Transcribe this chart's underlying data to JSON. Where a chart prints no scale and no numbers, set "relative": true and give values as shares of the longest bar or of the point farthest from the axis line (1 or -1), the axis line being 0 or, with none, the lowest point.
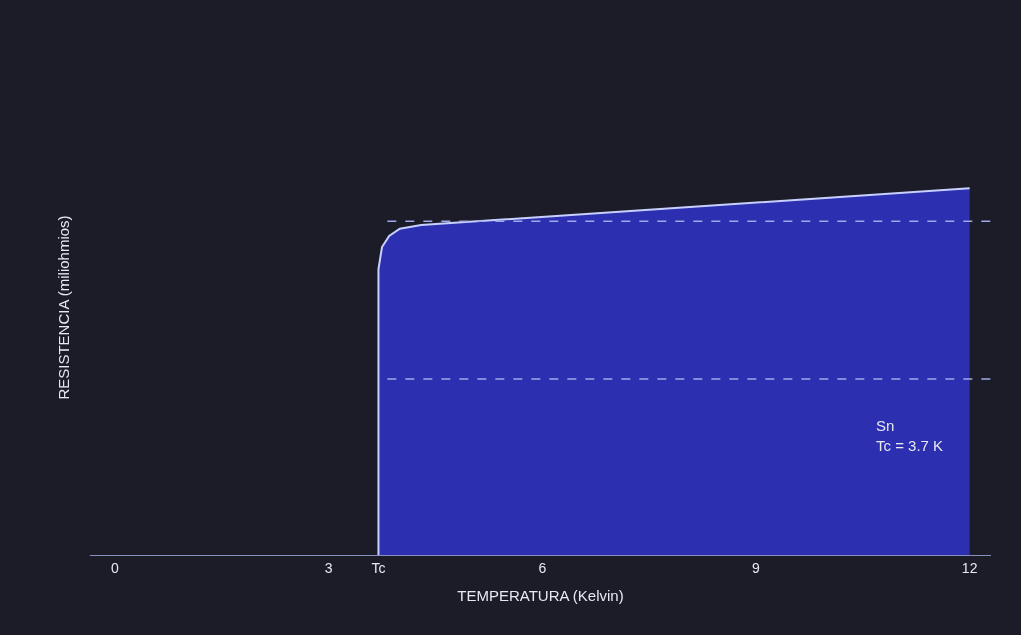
{
  "chart_data": {
    "type": "area",
    "relative": true,
    "xlabel": "TEMPERATURA (Kelvin)",
    "ylabel": "RESISTENCIA (miliohmios)",
    "x": [
      3.7,
      3.7,
      3.75,
      3.85,
      4.0,
      4.3,
      12
    ],
    "series": [
      {
        "color": "#2c30b0",
        "values": [
          0,
          0.78,
          0.84,
          0.87,
          0.89,
          0.9,
          1.0
        ]
      }
    ],
    "xlim": [
      -0.35,
      12.3
    ],
    "xticks": [
      0,
      3,
      {
        "value": 3.7,
        "label": "Tc"
      },
      6,
      9,
      12
    ],
    "ref_lines": [
      {
        "axis": "y",
        "value": 0.91,
        "color": "#9fa8e8",
        "line_style": "dashed"
      },
      {
        "axis": "y",
        "value": 0.48,
        "color": "#9fa8e8",
        "line_style": "dashed"
      }
    ],
    "annotations": [
      "Sn\nTc = 3.7 K"
    ],
    "grid": false
  }
}
